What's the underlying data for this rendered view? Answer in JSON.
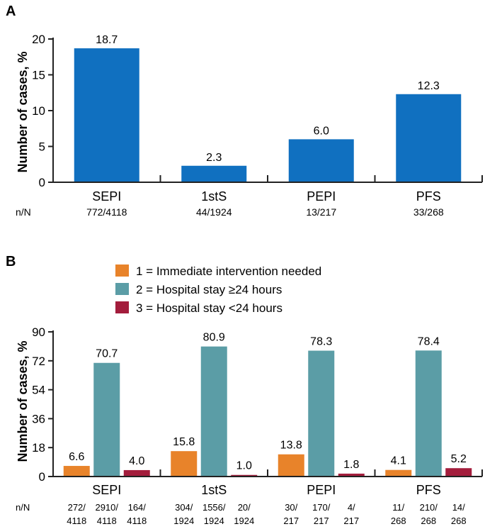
{
  "panels": {
    "a": {
      "label": "A"
    },
    "b": {
      "label": "B"
    }
  },
  "colors": {
    "panel_a_bar": "#1070C0",
    "immediate": "#E8832A",
    "stay_ge24": "#5B9DA6",
    "stay_lt24": "#A31D3C",
    "axis": "#222222"
  },
  "chart_data": [
    {
      "type": "bar",
      "panel": "A",
      "ylabel": "Number of cases, %",
      "ylim": [
        0,
        20
      ],
      "yticks": [
        "0",
        "5",
        "10",
        "15",
        "20"
      ],
      "categories": [
        "SEPI",
        "1stS",
        "PEPI",
        "PFS"
      ],
      "values": [
        18.7,
        2.3,
        6.0,
        12.3
      ],
      "value_labels": [
        "18.7",
        "2.3",
        "6.0",
        "12.3"
      ],
      "nn_label": "n/N",
      "nn": [
        "772/4118",
        "44/1924",
        "13/217",
        "33/268"
      ]
    },
    {
      "type": "bar",
      "panel": "B",
      "ylabel": "Number of cases, %",
      "ylim": [
        0,
        90
      ],
      "yticks": [
        "0",
        "18",
        "36",
        "54",
        "72",
        "90"
      ],
      "categories": [
        "SEPI",
        "1stS",
        "PEPI",
        "PFS"
      ],
      "legend_position": "top",
      "series": [
        {
          "name": "1 = Immediate intervention needed",
          "values": [
            6.6,
            15.8,
            13.8,
            4.1
          ],
          "value_labels": [
            "6.6",
            "15.8",
            "13.8",
            "4.1"
          ],
          "nn": [
            [
              "272/",
              "4118"
            ],
            [
              "304/",
              "1924"
            ],
            [
              "30/",
              "217"
            ],
            [
              "11/",
              "268"
            ]
          ]
        },
        {
          "name": "2 = Hospital stay ≥24 hours",
          "values": [
            70.7,
            80.9,
            78.3,
            78.4
          ],
          "value_labels": [
            "70.7",
            "80.9",
            "78.3",
            "78.4"
          ],
          "nn": [
            [
              "2910/",
              "4118"
            ],
            [
              "1556/",
              "1924"
            ],
            [
              "170/",
              "217"
            ],
            [
              "210/",
              "268"
            ]
          ]
        },
        {
          "name": "3 = Hospital stay <24 hours",
          "values": [
            4.0,
            1.0,
            1.8,
            5.2
          ],
          "value_labels": [
            "4.0",
            "1.0",
            "1.8",
            "5.2"
          ],
          "nn": [
            [
              "164/",
              "4118"
            ],
            [
              "20/",
              "1924"
            ],
            [
              "4/",
              "217"
            ],
            [
              "14/",
              "268"
            ]
          ]
        }
      ],
      "nn_label": "n/N"
    }
  ]
}
